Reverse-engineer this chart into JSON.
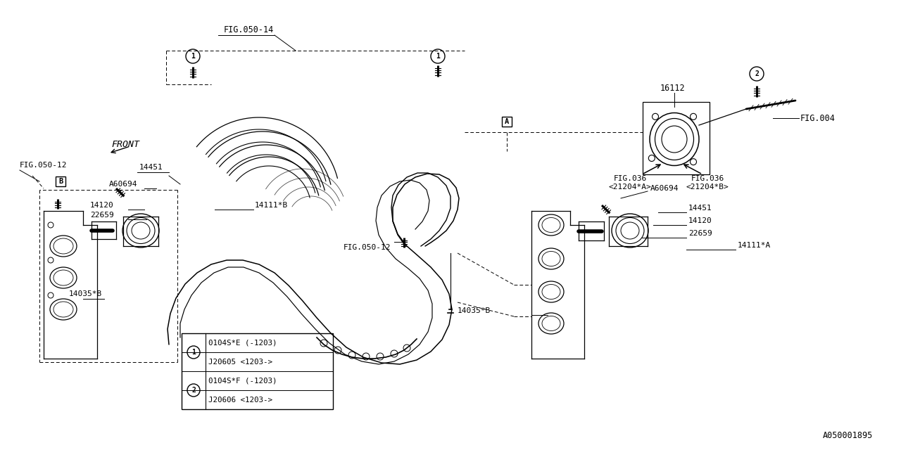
{
  "bg_color": "#ffffff",
  "line_color": "#000000",
  "fig_id": "A050001895",
  "labels": {
    "fig050_14": "FIG.050-14",
    "fig050_12_top": "FIG.050-12",
    "fig050_12_bot": "FIG.050-12",
    "fig004": "FIG.004",
    "fig036_a": "FIG.036\n<21204*A>",
    "fig036_b": "FIG.036\n<21204*B>",
    "front": "FRONT",
    "16112": "16112",
    "14451_left": "14451",
    "14451_right": "14451",
    "A60694_left": "A60694",
    "A60694_right": "A60694",
    "14120_left": "14120",
    "14120_right": "14120",
    "22659_left": "22659",
    "22659_right": "22659",
    "14111B": "14111*B",
    "14111A": "14111*A",
    "14035B_left": "14035*B",
    "14035B_right": "14035*B"
  },
  "legend_rows": [
    [
      "1",
      "0104S*E (-1203)"
    ],
    [
      "1",
      "J20605 <1203->"
    ],
    [
      "2",
      "0104S*F (-1203)"
    ],
    [
      "2",
      "J20606 <1203->"
    ]
  ]
}
